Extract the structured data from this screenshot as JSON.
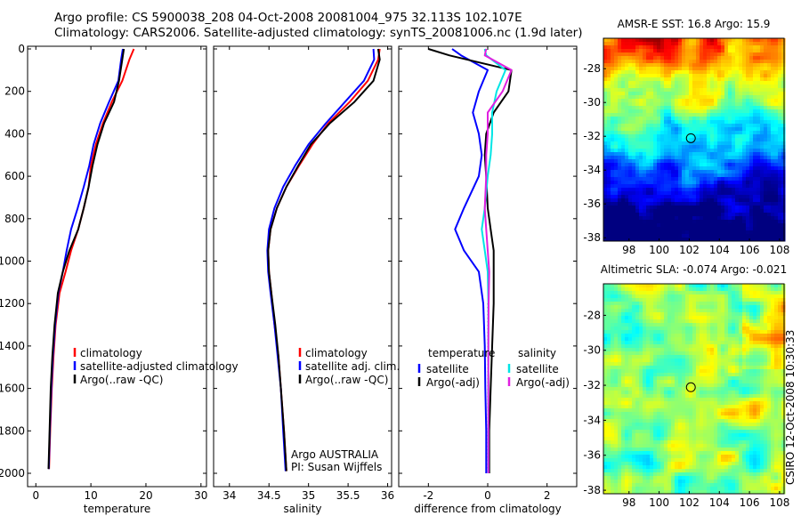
{
  "header": {
    "line1": "Argo profile: CS 5900038_208 04-Oct-2008 20081004_975 32.113S 102.107E",
    "line2": "Climatology: CARS2006. Satellite-adjusted climatology: synTS_20081006.nc (1.9d later)"
  },
  "watermark": "CSIRO 12-Oct-2008 10:30:33",
  "chart_data": [
    {
      "type": "line",
      "id": "temperature",
      "xlabel": "temperature",
      "ylabel": "",
      "xlim": [
        -1.5,
        31
      ],
      "ylim": [
        2050,
        0
      ],
      "xticks": [
        0,
        10,
        20,
        30
      ],
      "yticks": [
        0,
        200,
        400,
        600,
        800,
        1000,
        1200,
        1400,
        1600,
        1800,
        2000
      ],
      "legend": {
        "position": "lower-center",
        "entries": [
          "climatology",
          "satellite-adjusted climatology",
          "Argo(..raw -QC)"
        ]
      },
      "series": [
        {
          "name": "climatology",
          "color": "#ff0000",
          "x": [
            17.8,
            17.0,
            15.7,
            13.8,
            12.2,
            10.9,
            10.0,
            9.6,
            8.7,
            7.7,
            6.4,
            5.4,
            4.3,
            3.6,
            3.2,
            2.9,
            2.6,
            2.4
          ],
          "y": [
            0,
            50,
            150,
            250,
            350,
            450,
            550,
            650,
            750,
            850,
            950,
            1050,
            1150,
            1300,
            1450,
            1600,
            1800,
            1980
          ]
        },
        {
          "name": "satellite-adjusted climatology",
          "color": "#0000ff",
          "x": [
            15.8,
            15.5,
            15.0,
            13.3,
            11.7,
            10.5,
            9.7,
            8.7,
            7.6,
            6.4,
            5.6,
            4.9,
            4.1,
            3.5,
            3.1,
            2.8,
            2.55,
            2.35
          ],
          "y": [
            0,
            50,
            150,
            250,
            350,
            450,
            550,
            650,
            750,
            850,
            950,
            1050,
            1150,
            1300,
            1450,
            1600,
            1800,
            1980
          ]
        },
        {
          "name": "Argo(..raw -QC)",
          "color": "#000000",
          "x": [
            16.0,
            15.7,
            15.1,
            14.2,
            12.4,
            11.2,
            10.3,
            9.6,
            8.7,
            7.7,
            6.1,
            4.9,
            4.0,
            3.4,
            3.0,
            2.7,
            2.5,
            2.3
          ],
          "y": [
            0,
            50,
            150,
            250,
            350,
            450,
            550,
            650,
            750,
            850,
            950,
            1050,
            1150,
            1300,
            1450,
            1600,
            1800,
            1980
          ]
        }
      ]
    },
    {
      "type": "line",
      "id": "salinity",
      "xlabel": "salinity",
      "ylabel": "",
      "xlim": [
        33.8,
        36.05
      ],
      "ylim": [
        2050,
        0
      ],
      "xticks": [
        34,
        34.5,
        35,
        35.5,
        36
      ],
      "xtick_labels": [
        "34",
        "34.5",
        "35",
        "35.5",
        "36"
      ],
      "legend": {
        "position": "lower-center",
        "entries": [
          "climatology",
          "satellite adj. clim.",
          "Argo(..raw -QC)"
        ]
      },
      "annotation": [
        "Argo AUSTRALIA",
        "PI: Susan Wijffels"
      ],
      "series": [
        {
          "name": "climatology",
          "color": "#ff0000",
          "x": [
            35.9,
            35.88,
            35.75,
            35.52,
            35.25,
            35.05,
            34.88,
            34.72,
            34.6,
            34.52,
            34.49,
            34.5,
            34.53,
            34.57,
            34.62,
            34.65,
            34.69,
            34.72
          ],
          "y": [
            0,
            50,
            150,
            250,
            350,
            450,
            550,
            650,
            750,
            850,
            950,
            1050,
            1150,
            1300,
            1450,
            1600,
            1800,
            1990
          ]
        },
        {
          "name": "satellite adj. clim.",
          "color": "#0000ff",
          "x": [
            35.82,
            35.83,
            35.7,
            35.46,
            35.22,
            35.0,
            34.83,
            34.68,
            34.57,
            34.5,
            34.48,
            34.49,
            34.52,
            34.57,
            34.61,
            34.65,
            34.68,
            34.71
          ],
          "y": [
            0,
            50,
            150,
            250,
            350,
            450,
            550,
            650,
            750,
            850,
            950,
            1050,
            1150,
            1300,
            1450,
            1600,
            1800,
            1990
          ]
        },
        {
          "name": "Argo(..raw -QC)",
          "color": "#000000",
          "x": [
            35.88,
            35.9,
            35.82,
            35.58,
            35.27,
            35.03,
            34.87,
            34.72,
            34.6,
            34.52,
            34.49,
            34.5,
            34.53,
            34.58,
            34.62,
            34.65,
            34.69,
            34.72
          ],
          "y": [
            0,
            50,
            150,
            250,
            350,
            450,
            550,
            650,
            750,
            850,
            950,
            1050,
            1150,
            1300,
            1450,
            1600,
            1800,
            1990
          ]
        }
      ]
    },
    {
      "type": "line",
      "id": "difference",
      "xlabel": "difference from climatology",
      "ylabel": "",
      "xlim": [
        -3.0,
        3.0
      ],
      "ylim": [
        2050,
        0
      ],
      "xticks": [
        -2,
        0,
        2
      ],
      "reference_line": {
        "x": 0,
        "style": "dotted"
      },
      "legend": {
        "position": "lower-center",
        "groups": [
          {
            "heading": "temperature",
            "entries": [
              "satellite",
              "Argo(-adj)"
            ]
          },
          {
            "heading": "salinity",
            "entries": [
              "satellite",
              "Argo(-adj)"
            ]
          }
        ]
      },
      "series": [
        {
          "name": "satellite",
          "group": "temperature",
          "color": "#0000ff",
          "x": [
            -1.2,
            -0.9,
            0.0,
            -0.3,
            -0.5,
            -0.3,
            -0.2,
            -0.3,
            -0.8,
            -1.1,
            -0.8,
            -0.3,
            -0.15,
            -0.1,
            -0.08,
            -0.05,
            -0.05
          ],
          "y": [
            0,
            30,
            100,
            200,
            300,
            400,
            500,
            600,
            750,
            850,
            950,
            1050,
            1200,
            1400,
            1600,
            1800,
            2000
          ]
        },
        {
          "name": "Argo(-adj)",
          "group": "temperature",
          "color": "#000000",
          "x": [
            -2.0,
            -1.3,
            0.8,
            0.7,
            0.2,
            -0.05,
            -0.1,
            -0.05,
            0.0,
            0.1,
            0.2,
            0.2,
            0.2,
            0.15,
            0.1,
            0.05,
            0.05
          ],
          "y": [
            0,
            30,
            100,
            200,
            300,
            400,
            500,
            600,
            750,
            850,
            950,
            1050,
            1200,
            1400,
            1600,
            1800,
            2000
          ]
        },
        {
          "name": "satellite",
          "group": "salinity",
          "color": "#00e5e5",
          "x": [
            -0.1,
            -0.05,
            0.6,
            0.3,
            0.15,
            0.15,
            0.1,
            0.0,
            -0.1,
            -0.2,
            -0.1,
            0.0,
            0.02,
            0.02,
            0.02,
            0.02,
            0.02
          ],
          "y": [
            0,
            30,
            100,
            200,
            300,
            400,
            500,
            600,
            750,
            850,
            950,
            1050,
            1200,
            1400,
            1600,
            1800,
            2000
          ]
        },
        {
          "name": "Argo(-adj)",
          "group": "salinity",
          "color": "#e020e0",
          "x": [
            -0.05,
            -0.1,
            0.8,
            0.5,
            0.0,
            0.0,
            -0.05,
            -0.05,
            -0.1,
            -0.05,
            0.0,
            0.05,
            0.03,
            0.02,
            0.02,
            0.02,
            0.02
          ],
          "y": [
            0,
            30,
            100,
            200,
            300,
            400,
            500,
            600,
            750,
            850,
            950,
            1050,
            1200,
            1400,
            1600,
            1800,
            2000
          ]
        }
      ]
    },
    {
      "type": "heatmap",
      "id": "amsre",
      "title": "AMSR-E SST: 16.8  Argo: 15.9",
      "xlim": [
        96.3,
        108.3
      ],
      "ylim": [
        -38.2,
        -26.2
      ],
      "xticks": [
        98,
        100,
        102,
        104,
        106,
        108
      ],
      "yticks": [
        -38,
        -36,
        -34,
        -32,
        -30,
        -28
      ],
      "marker": {
        "lon": 102.107,
        "lat": -32.113
      },
      "field": "sst"
    },
    {
      "type": "heatmap",
      "id": "sla",
      "title": "Altimetric SLA: -0.074  Argo: -0.021",
      "xlim": [
        96.3,
        108.3
      ],
      "ylim": [
        -38.2,
        -26.2
      ],
      "xticks": [
        98,
        100,
        102,
        104,
        106,
        108
      ],
      "yticks": [
        -38,
        -36,
        -34,
        -32,
        -30,
        -28
      ],
      "marker": {
        "lon": 102.107,
        "lat": -32.113
      },
      "field": "sla"
    }
  ]
}
